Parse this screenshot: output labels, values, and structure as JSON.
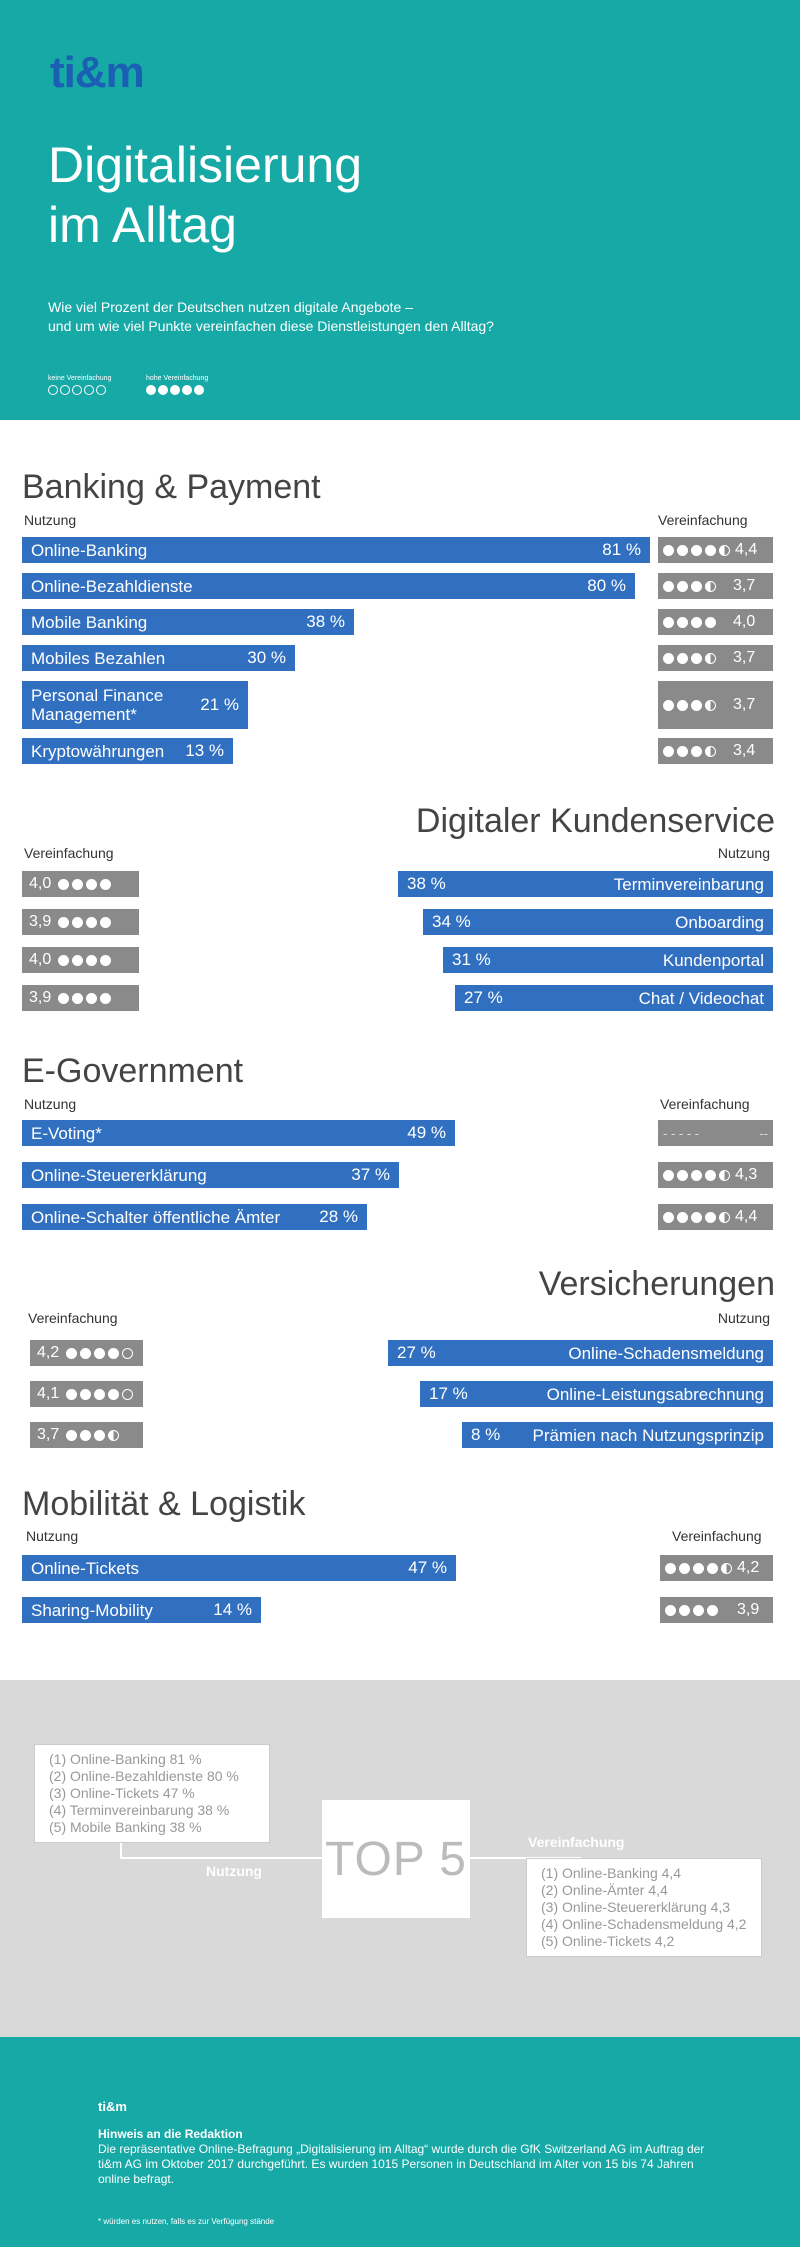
{
  "header": {
    "logo": "ti&m",
    "title_line1": "Digitalisierung",
    "title_line2": "im Alltag",
    "subtitle_line1": "Wie viel Prozent der Deutschen nutzen digitale Angebote –",
    "subtitle_line2": "und um wie viel Punkte vereinfachen diese Dienstleistungen den Alltag?",
    "legend_low": "keine Vereinfachung",
    "legend_high": "hohe Vereinfachung"
  },
  "labels": {
    "usage": "Nutzung",
    "simplification": "Vereinfachung"
  },
  "banking": {
    "title": "Banking & Payment",
    "rows": [
      {
        "label": "Online-Banking",
        "pct": "81 %",
        "value": 81,
        "rating": "4,4",
        "dots": "4.4"
      },
      {
        "label": "Online-Bezahldienste",
        "pct": "80 %",
        "value": 80,
        "rating": "3,7",
        "dots": "3.7"
      },
      {
        "label": "Mobile Banking",
        "pct": "38 %",
        "value": 38,
        "rating": "4,0",
        "dots": "4.0"
      },
      {
        "label": "Mobiles Bezahlen",
        "pct": "30 %",
        "value": 30,
        "rating": "3,7",
        "dots": "3.7"
      },
      {
        "label": "Personal Finance\nManagement*",
        "pct": "21 %",
        "value": 21,
        "rating": "3,7",
        "dots": "3.7"
      },
      {
        "label": "Kryptowährungen",
        "pct": "13 %",
        "value": 13,
        "rating": "3,4",
        "dots": "3.4"
      }
    ]
  },
  "kundenservice": {
    "title": "Digitaler Kundenservice",
    "rows": [
      {
        "label": "Terminvereinbarung",
        "pct": "38 %",
        "value": 38,
        "rating": "4,0"
      },
      {
        "label": "Onboarding",
        "pct": "34 %",
        "value": 34,
        "rating": "3,9"
      },
      {
        "label": "Kundenportal",
        "pct": "31 %",
        "value": 31,
        "rating": "4,0"
      },
      {
        "label": "Chat / Videochat",
        "pct": "27 %",
        "value": 27,
        "rating": "3,9"
      }
    ]
  },
  "egov": {
    "title": "E-Government",
    "rows": [
      {
        "label": "E-Voting*",
        "pct": "49 %",
        "value": 49,
        "rating": "--",
        "no_rating": "- - - - -"
      },
      {
        "label": "Online-Steuererklärung",
        "pct": "37 %",
        "value": 37,
        "rating": "4,3"
      },
      {
        "label": "Online-Schalter öffentliche Ämter",
        "pct": "28 %",
        "value": 28,
        "rating": "4,4"
      }
    ]
  },
  "versicherungen": {
    "title": "Versicherungen",
    "rows": [
      {
        "label": "Online-Schadensmeldung",
        "pct": "27 %",
        "value": 27,
        "rating": "4,2"
      },
      {
        "label": "Online-Leistungsabrechnung",
        "pct": "17 %",
        "value": 17,
        "rating": "4,1"
      },
      {
        "label": "Prämien nach Nutzungsprinzip",
        "pct": "8 %",
        "value": 8,
        "rating": "3,7"
      }
    ]
  },
  "mobilitaet": {
    "title": "Mobilität & Logistik",
    "rows": [
      {
        "label": "Online-Tickets",
        "pct": "47 %",
        "value": 47,
        "rating": "4,2"
      },
      {
        "label": "Sharing-Mobility",
        "pct": "14 %",
        "value": 14,
        "rating": "3,9"
      }
    ]
  },
  "top5": {
    "title": "TOP 5",
    "usage_label": "Nutzung",
    "simplification_label": "Vereinfachung",
    "usage": [
      "(1) Online-Banking 81 %",
      "(2) Online-Bezahldienste 80 %",
      "(3) Online-Tickets 47 %",
      "(4) Terminvereinbarung 38 %",
      "(5) Mobile Banking 38 %"
    ],
    "simplification": [
      "(1) Online-Banking 4,4",
      "(2) Online-Ämter 4,4",
      "(3) Online-Steuererklärung 4,3",
      "(4) Online-Schadensmeldung 4,2",
      "(5) Online-Tickets 4,2"
    ]
  },
  "footer": {
    "logo": "ti&m",
    "heading": "Hinweis an die Redaktion",
    "text": "Die repräsentative Online-Befragung „Digitalisierung im Alltag“ wurde durch die GfK Switzerland AG im Auftrag der ti&m AG im Oktober 2017 durchgeführt. Es wurden 1015 Personen in Deutschland im Alter von 15 bis 74 Jahren online befragt.",
    "note": "* würden es nutzen, falls es zur Verfügung stände"
  }
}
